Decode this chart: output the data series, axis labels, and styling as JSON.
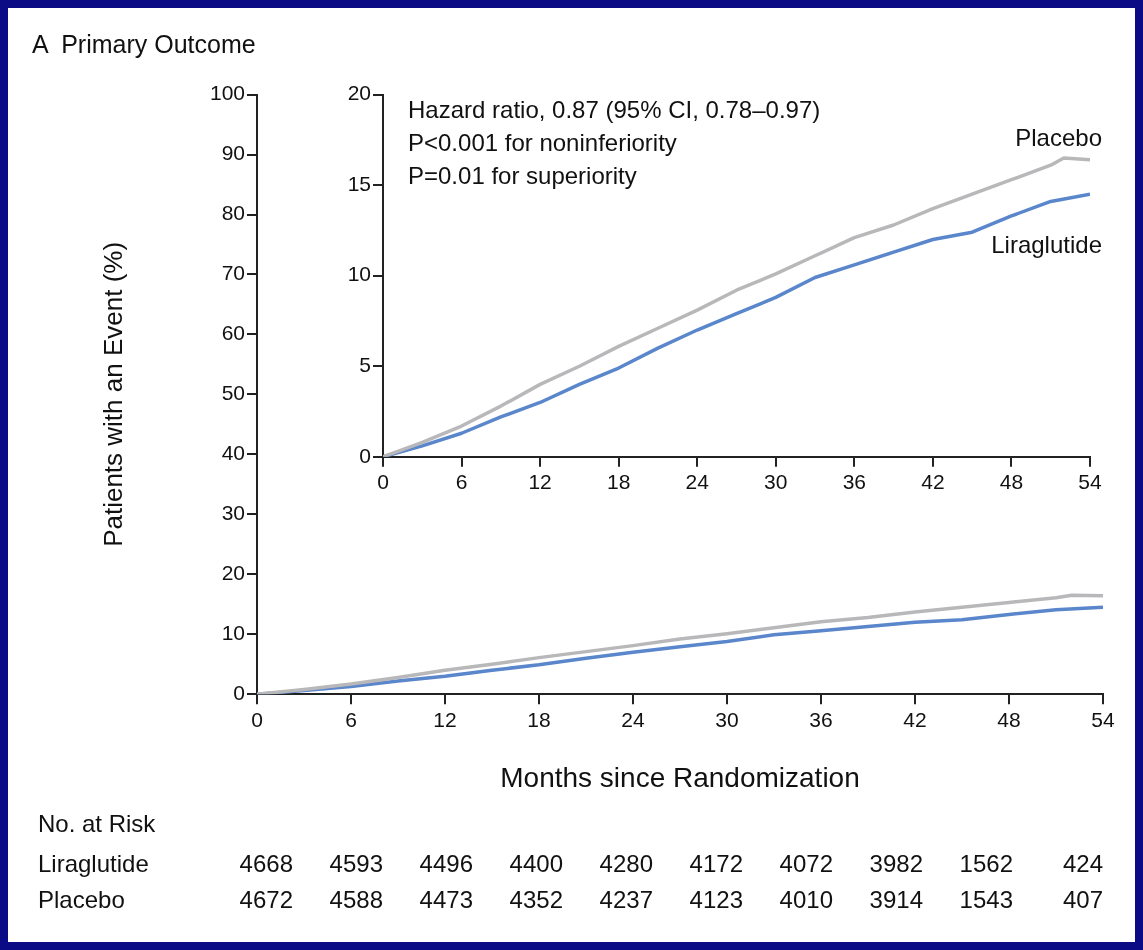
{
  "chart_data": [
    {
      "type": "line",
      "title": "A  Primary Outcome",
      "xlabel": "Months since Randomization",
      "ylabel": "Patients with an Event (%)",
      "xlim": [
        0,
        54
      ],
      "xticks": [
        0,
        6,
        12,
        18,
        24,
        30,
        36,
        42,
        48,
        54
      ],
      "ylim": [
        0,
        100
      ],
      "yticks": [
        0,
        10,
        20,
        30,
        40,
        50,
        60,
        70,
        80,
        90,
        100
      ],
      "grid": false,
      "legend": false,
      "marker": "none",
      "line_style": "solid",
      "series": [
        {
          "color": "#b8b8ba",
          "x": [
            0,
            3,
            6,
            9,
            12,
            15,
            18,
            21,
            24,
            27,
            30,
            33,
            36,
            39,
            42,
            45,
            48,
            51,
            52,
            54
          ],
          "values": [
            0,
            0.8,
            1.7,
            2.8,
            4.0,
            5.0,
            6.1,
            7.1,
            8.1,
            9.2,
            10.1,
            11.1,
            12.1,
            12.8,
            13.7,
            14.5,
            15.3,
            16.1,
            16.5,
            16.4
          ]
        },
        {
          "color": "#5a86cc",
          "x": [
            0,
            3,
            6,
            9,
            12,
            15,
            18,
            21,
            24,
            27,
            30,
            33,
            36,
            39,
            42,
            45,
            48,
            51,
            54
          ],
          "values": [
            0,
            0.6,
            1.3,
            2.2,
            3.0,
            4.0,
            4.9,
            6.0,
            7.0,
            7.9,
            8.8,
            9.9,
            10.6,
            11.3,
            12.0,
            12.4,
            13.3,
            14.1,
            14.5
          ]
        }
      ],
      "annotations": [
        "No. at Risk",
        "Liraglutide",
        "4668",
        "4593",
        "4496",
        "4400",
        "4280",
        "4172",
        "4072",
        "3982",
        "1562",
        "424",
        "Placebo",
        "4672",
        "4588",
        "4473",
        "4352",
        "4237",
        "4123",
        "4010",
        "3914",
        "1543",
        "407"
      ]
    },
    {
      "type": "line",
      "xlim": [
        0,
        54
      ],
      "xticks": [
        0,
        6,
        12,
        18,
        24,
        30,
        36,
        42,
        48,
        54
      ],
      "ylim": [
        0,
        20
      ],
      "yticks": [
        0,
        5,
        10,
        15,
        20
      ],
      "grid": false,
      "legend": false,
      "marker": "none",
      "line_style": "solid",
      "series": [
        {
          "name": "Placebo",
          "color": "#b8b8ba",
          "x": [
            0,
            3,
            6,
            9,
            12,
            15,
            18,
            21,
            24,
            27,
            30,
            33,
            36,
            39,
            42,
            45,
            48,
            51,
            52,
            54
          ],
          "values": [
            0,
            0.8,
            1.7,
            2.8,
            4.0,
            5.0,
            6.1,
            7.1,
            8.1,
            9.2,
            10.1,
            11.1,
            12.1,
            12.8,
            13.7,
            14.5,
            15.3,
            16.1,
            16.5,
            16.4
          ]
        },
        {
          "name": "Liraglutide",
          "color": "#5a86cc",
          "x": [
            0,
            3,
            6,
            9,
            12,
            15,
            18,
            21,
            24,
            27,
            30,
            33,
            36,
            39,
            42,
            45,
            48,
            51,
            54
          ],
          "values": [
            0,
            0.6,
            1.3,
            2.2,
            3.0,
            4.0,
            4.9,
            6.0,
            7.0,
            7.9,
            8.8,
            9.9,
            10.6,
            11.3,
            12.0,
            12.4,
            13.3,
            14.1,
            14.5
          ]
        }
      ],
      "annotations": [
        "Hazard ratio, 0.87 (95% CI, 0.78–0.97)",
        "P<0.001 for noninferiority",
        "P=0.01 for superiority"
      ]
    }
  ]
}
